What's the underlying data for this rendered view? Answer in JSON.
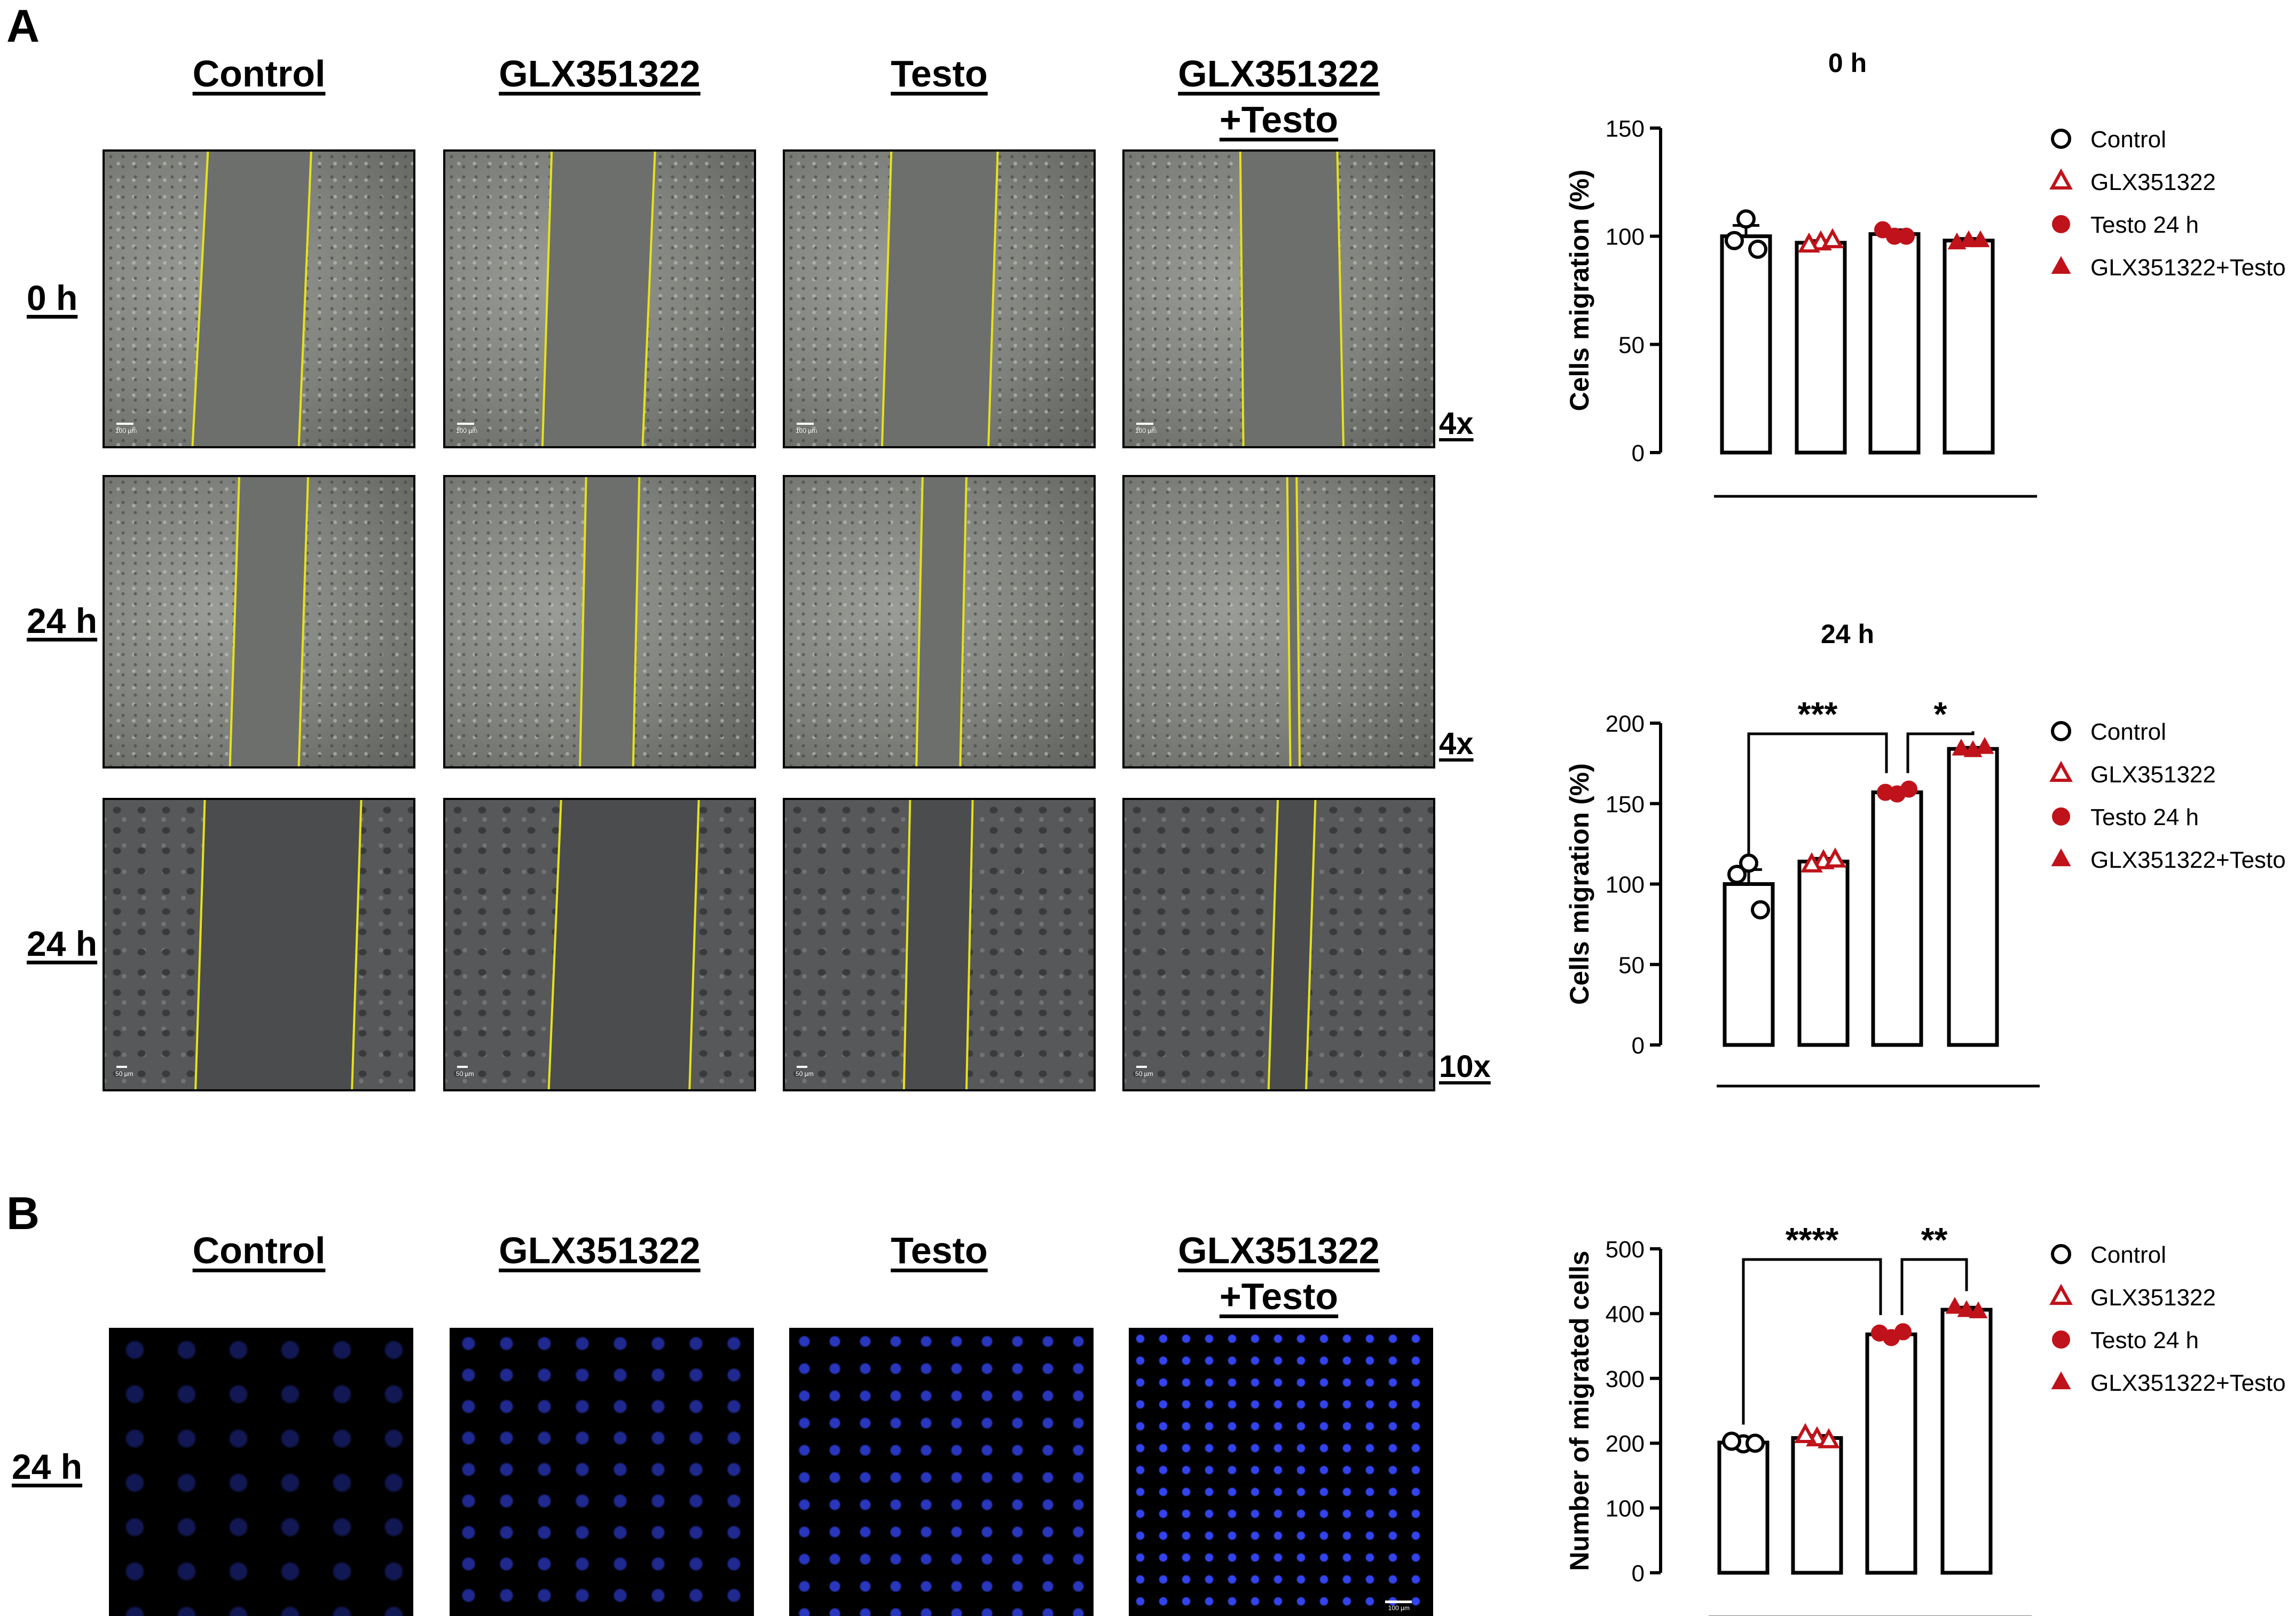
{
  "panel_a": {
    "letter": "A",
    "columns": [
      "Control",
      "GLX351322",
      "Testo",
      "GLX351322\n+Testo"
    ],
    "rows": [
      "0 h",
      "24 h",
      "24 h"
    ],
    "magnifications": [
      "4x",
      "4x",
      "10x"
    ],
    "scale_labels": [
      "100 µm",
      "100 µm",
      "100 µm",
      "100 µm",
      "50 µm",
      "50 µm",
      "50 µm",
      "50 µm"
    ]
  },
  "panel_b": {
    "letter": "B",
    "columns": [
      "Control",
      "GLX351322",
      "Testo",
      "GLX351322\n+Testo"
    ],
    "rows": [
      "24 h"
    ],
    "scale_label": "100 µm"
  },
  "legend_entries": [
    "Control",
    "GLX351322",
    "Testo 24 h",
    "GLX351322+Testo"
  ],
  "colors": {
    "red": "#c0121a",
    "scratch_line": "#e5e21a",
    "nuclei": "#3344ee"
  },
  "chart_data": [
    {
      "type": "bar",
      "title": "0 h",
      "ylabel": "Cells migration (%)",
      "ylim": [
        0,
        150
      ],
      "yticks": [
        0,
        50,
        100,
        150
      ],
      "categories": [
        "Control",
        "GLX351322",
        "Testo 24 h",
        "GLX351322+Testo"
      ],
      "values": [
        100,
        97,
        101,
        98
      ],
      "sem": [
        5,
        1,
        2,
        1
      ],
      "points": [
        [
          108,
          98,
          94
        ],
        [
          97,
          96,
          98
        ],
        [
          100,
          103,
          100
        ],
        [
          98,
          97,
          98
        ]
      ],
      "markers": [
        "open-circle",
        "open-triangle",
        "filled-circle",
        "filled-triangle"
      ],
      "legend_position": "right",
      "significance": []
    },
    {
      "type": "bar",
      "title": "24 h",
      "ylabel": "Cells migration (%)",
      "ylim": [
        0,
        200
      ],
      "yticks": [
        0,
        50,
        100,
        150,
        200
      ],
      "categories": [
        "Control",
        "GLX351322",
        "Testo 24 h",
        "GLX351322+Testo"
      ],
      "values": [
        100,
        114,
        157,
        184
      ],
      "sem": [
        9,
        2,
        2,
        1
      ],
      "points": [
        [
          113,
          106,
          84
        ],
        [
          114,
          112,
          115
        ],
        [
          156,
          157,
          159
        ],
        [
          183,
          184,
          185
        ]
      ],
      "markers": [
        "open-circle",
        "open-triangle",
        "filled-circle",
        "filled-triangle"
      ],
      "legend_position": "right",
      "significance": [
        {
          "from": 0,
          "to": 2,
          "label": "***"
        },
        {
          "from": 2,
          "to": 3,
          "label": "*"
        }
      ]
    },
    {
      "type": "bar",
      "title": "",
      "ylabel": "Number of migrated cells",
      "ylim": [
        0,
        500
      ],
      "yticks": [
        0,
        100,
        200,
        300,
        400,
        500
      ],
      "categories": [
        "Control",
        "GLX351322",
        "Testo 24 h",
        "GLX351322+Testo"
      ],
      "values": [
        201,
        208,
        368,
        406
      ],
      "sem": [
        3,
        4,
        5,
        4
      ],
      "points": [
        [
          199,
          203,
          200
        ],
        [
          207,
          212,
          204
        ],
        [
          363,
          370,
          372
        ],
        [
          405,
          410,
          403
        ]
      ],
      "markers": [
        "open-circle",
        "open-triangle",
        "filled-circle",
        "filled-triangle"
      ],
      "legend_position": "right",
      "significance": [
        {
          "from": 0,
          "to": 2,
          "label": "****"
        },
        {
          "from": 2,
          "to": 3,
          "label": "**"
        }
      ]
    }
  ]
}
